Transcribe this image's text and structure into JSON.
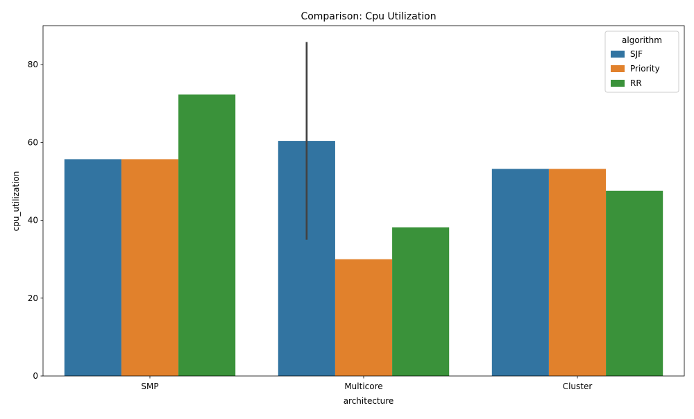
{
  "chart_data": {
    "type": "bar",
    "title": "Comparison: Cpu Utilization",
    "xlabel": "architecture",
    "ylabel": "cpu_utilization",
    "categories": [
      "SMP",
      "Multicore",
      "Cluster"
    ],
    "series": [
      {
        "name": "SJF",
        "color": "#3274a1",
        "values": [
          55.7,
          60.4,
          53.2
        ],
        "error_low": [
          null,
          35.0,
          null
        ],
        "error_high": [
          null,
          85.8,
          null
        ]
      },
      {
        "name": "Priority",
        "color": "#e1812c",
        "values": [
          55.7,
          30.0,
          53.2
        ]
      },
      {
        "name": "RR",
        "color": "#3a923a",
        "values": [
          72.3,
          38.2,
          47.6
        ]
      }
    ],
    "ylim": [
      0,
      90
    ],
    "yticks": [
      0,
      20,
      40,
      60,
      80
    ],
    "legend": {
      "title": "algorithm",
      "placement": "top-right"
    },
    "grid": false
  }
}
